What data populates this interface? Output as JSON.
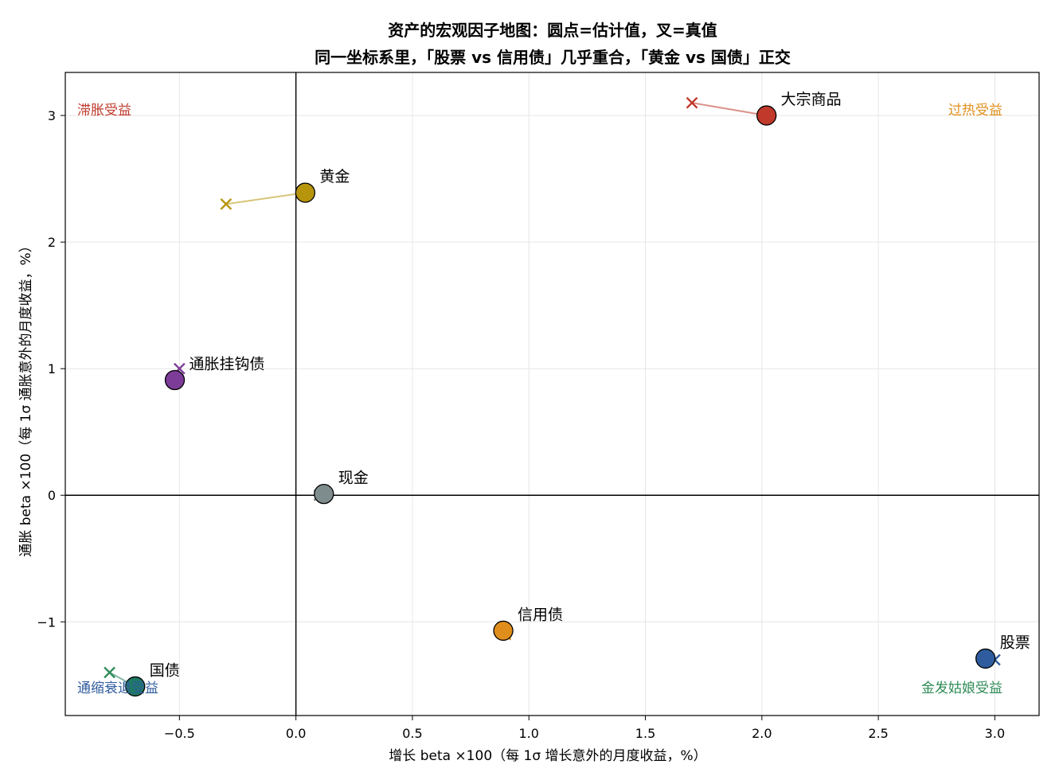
{
  "chart_data": {
    "type": "scatter",
    "title": "资产的宏观因子地图：圆点=估计值，叉=真值",
    "subtitle": "同一坐标系里，「股票 vs 信用债」几乎重合，「黄金 vs 国债」正交",
    "xlabel": "增长 beta ×100（每 1σ 增长意外的月度收益，%）",
    "ylabel": "通胀 beta ×100（每 1σ 通胀意外的月度收益，%）",
    "xlim": [
      -0.99,
      3.19
    ],
    "ylim": [
      -1.74,
      3.34
    ],
    "xticks": [
      -0.5,
      0.0,
      0.5,
      1.0,
      1.5,
      2.0,
      2.5,
      3.0
    ],
    "xtick_labels": [
      "−0.5",
      "0.0",
      "0.5",
      "1.0",
      "1.5",
      "2.0",
      "2.5",
      "3.0"
    ],
    "yticks": [
      -1,
      0,
      1,
      2,
      3
    ],
    "ytick_labels": [
      "−1",
      "0",
      "1",
      "2",
      "3"
    ],
    "grid": true,
    "reference_lines": {
      "x": 0,
      "y": 0
    },
    "assets": [
      {
        "name": "大宗商品",
        "estimated": [
          2.02,
          3.0
        ],
        "true": [
          1.7,
          3.1
        ],
        "color": "#c0392b"
      },
      {
        "name": "黄金",
        "estimated": [
          0.04,
          2.39
        ],
        "true": [
          -0.3,
          2.3
        ],
        "color": "#b7950b"
      },
      {
        "name": "通胀挂钩债",
        "estimated": [
          -0.52,
          0.91
        ],
        "true": [
          -0.5,
          1.0
        ],
        "color": "#7d3c98"
      },
      {
        "name": "现金",
        "estimated": [
          0.12,
          0.01
        ],
        "true": [
          0.1,
          0.0
        ],
        "color": "#7f8c8d"
      },
      {
        "name": "信用债",
        "estimated": [
          0.89,
          -1.07
        ],
        "true": [
          0.9,
          -1.1
        ],
        "color": "#e08e1b"
      },
      {
        "name": "股票",
        "estimated": [
          2.96,
          -1.29
        ],
        "true": [
          3.0,
          -1.3
        ],
        "color": "#2e5c9e"
      },
      {
        "name": "国债",
        "estimated": [
          -0.69,
          -1.51
        ],
        "true": [
          -0.8,
          -1.4
        ],
        "color": "#1f7a63"
      }
    ],
    "true_marker_colors": {
      "大宗商品": "#c0392b",
      "黄金": "#b7950b",
      "通胀挂钩债": "#7d3c98",
      "现金": "#7f8c8d",
      "信用债": "#e08e1b",
      "股票": "#2e5c9e",
      "国债": "#2e8b57"
    },
    "quadrant_labels": [
      {
        "text": "滞胀受益",
        "corner": "top-left",
        "color": "#c0392b"
      },
      {
        "text": "过热受益",
        "corner": "top-right",
        "color": "#e08e1b"
      },
      {
        "text": "通缩衰退受益",
        "corner": "bottom-left",
        "color": "#2e5c9e"
      },
      {
        "text": "金发姑娘受益",
        "corner": "bottom-right",
        "color": "#2e8b57"
      }
    ]
  }
}
